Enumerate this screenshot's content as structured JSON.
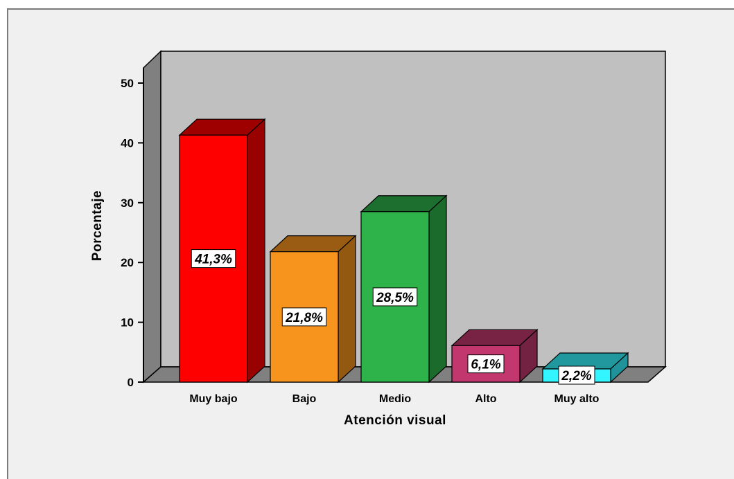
{
  "chart_data": {
    "type": "bar",
    "style": "3d",
    "categories": [
      "Muy bajo",
      "Bajo",
      "Medio",
      "Alto",
      "Muy alto"
    ],
    "values": [
      41.3,
      21.8,
      28.5,
      6.1,
      2.2
    ],
    "data_labels": [
      "41,3%",
      "21,8%",
      "28,5%",
      "6,1%",
      "2,2%"
    ],
    "colors": [
      "#ff0000",
      "#f7941d",
      "#2db34a",
      "#c2386e",
      "#33f5ff"
    ],
    "title": "",
    "xlabel": "Atención visual",
    "ylabel": "Porcentaje",
    "ylim": [
      0,
      50
    ],
    "yticks": [
      0,
      10,
      20,
      30,
      40,
      50
    ],
    "ytick_labels": [
      "0",
      "10",
      "20",
      "30",
      "40",
      "50"
    ],
    "grid": false,
    "legend": "none"
  }
}
